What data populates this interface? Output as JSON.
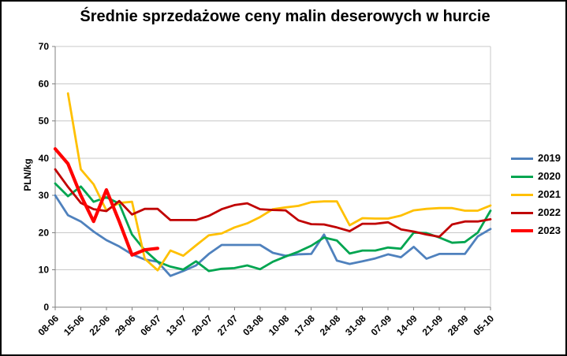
{
  "chart_data": {
    "type": "line",
    "title": "Średnie sprzedażowe ceny malin deserowych w hurcie",
    "xlabel": "",
    "ylabel": "PLN/kg",
    "ylim": [
      0,
      70
    ],
    "ytick_step": 10,
    "grid": "horizontal",
    "legend_position": "right-center",
    "background": "#FFFFFF",
    "gridline_color": "#C8C8C8",
    "axis_color": "#808080",
    "x_tick_labels": [
      "08-06",
      "15-06",
      "22-06",
      "29-06",
      "06-07",
      "13-07",
      "20-07",
      "27-07",
      "03-08",
      "10-08",
      "17-08",
      "24-08",
      "31-08",
      "07-09",
      "14-09",
      "21-09",
      "28-09",
      "05-10"
    ],
    "points_per_tick_interval": 2,
    "series": [
      {
        "name": "2019",
        "color": "#4F81BD",
        "width": 2.8,
        "values": [
          30.0,
          24.7,
          23.0,
          20.3,
          18.0,
          16.3,
          14.2,
          12.8,
          12.2,
          8.4,
          9.7,
          11.2,
          14.3,
          16.7,
          16.7,
          16.7,
          16.7,
          14.6,
          13.8,
          14.2,
          14.3,
          19.5,
          12.5,
          11.6,
          12.3,
          13.1,
          14.2,
          13.4,
          16.2,
          13.0,
          14.3,
          14.3,
          14.3,
          19.0,
          21.0
        ]
      },
      {
        "name": "2020",
        "color": "#00A550",
        "width": 2.8,
        "values": [
          33.2,
          29.8,
          32.4,
          28.3,
          29.5,
          27.8,
          19.5,
          15.3,
          12.2,
          10.9,
          10.1,
          12.3,
          9.7,
          10.3,
          10.5,
          11.2,
          10.2,
          12.2,
          13.6,
          14.9,
          16.5,
          18.7,
          17.9,
          14.4,
          15.2,
          15.2,
          16.0,
          15.7,
          20.0,
          19.9,
          18.7,
          17.3,
          17.5,
          20.0,
          25.9
        ]
      },
      {
        "name": "2021",
        "color": "#FFC000",
        "width": 2.8,
        "values": [
          null,
          57.4,
          37.0,
          33.0,
          26.0,
          28.0,
          28.3,
          13.0,
          9.9,
          15.2,
          13.8,
          16.6,
          19.3,
          19.8,
          21.4,
          22.5,
          24.2,
          26.3,
          26.8,
          27.2,
          28.2,
          28.4,
          28.4,
          22.0,
          23.9,
          23.8,
          23.8,
          24.6,
          26.0,
          26.4,
          26.6,
          26.6,
          25.9,
          25.9,
          27.3
        ]
      },
      {
        "name": "2022",
        "color": "#C00000",
        "width": 2.8,
        "values": [
          37.0,
          32.3,
          28.0,
          26.3,
          25.8,
          28.5,
          24.9,
          26.4,
          26.4,
          23.4,
          23.4,
          23.4,
          24.5,
          26.3,
          27.4,
          27.9,
          26.3,
          26.1,
          26.0,
          23.3,
          22.3,
          22.2,
          21.4,
          20.4,
          22.4,
          22.4,
          22.8,
          20.9,
          20.3,
          19.5,
          18.9,
          22.2,
          23.0,
          23.0,
          23.6
        ]
      },
      {
        "name": "2023",
        "color": "#FF0000",
        "width": 4.2,
        "values": [
          42.5,
          38.5,
          30.0,
          23.0,
          31.5,
          23.0,
          14.0,
          15.4,
          15.8,
          null,
          null,
          null,
          null,
          null,
          null,
          null,
          null,
          null,
          null,
          null,
          null,
          null,
          null,
          null,
          null,
          null,
          null,
          null,
          null,
          null,
          null,
          null,
          null,
          null,
          null
        ]
      }
    ]
  }
}
